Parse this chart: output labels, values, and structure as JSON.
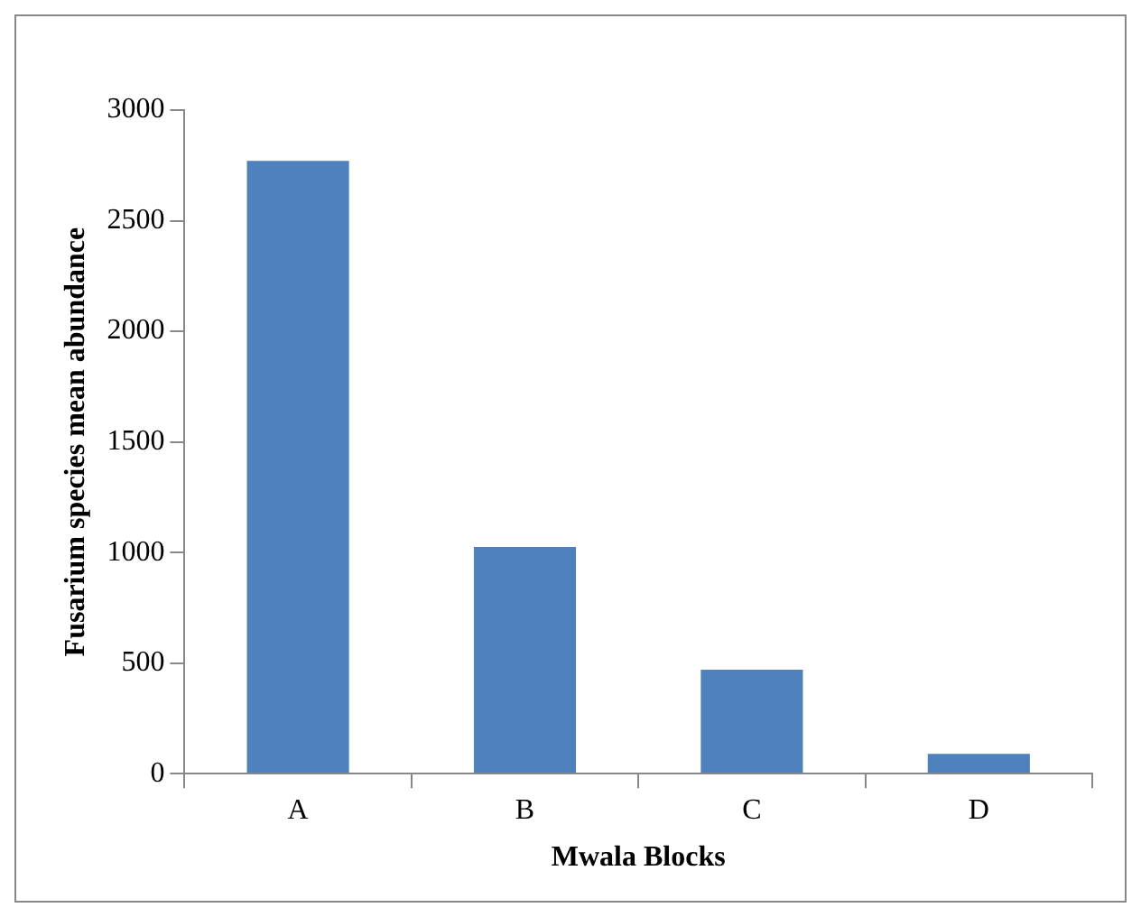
{
  "chart_data": {
    "type": "bar",
    "xlabel": "Mwala Blocks",
    "ylabel": "Fusarium species mean abundance",
    "categories": [
      "A",
      "B",
      "C",
      "D"
    ],
    "values": [
      2770,
      1025,
      470,
      90
    ],
    "color": "#4f81bd",
    "ylim": [
      0,
      3000
    ],
    "yticks": [
      0,
      500,
      1000,
      1500,
      2000,
      2500,
      3000
    ],
    "grid": false,
    "legend": false
  }
}
